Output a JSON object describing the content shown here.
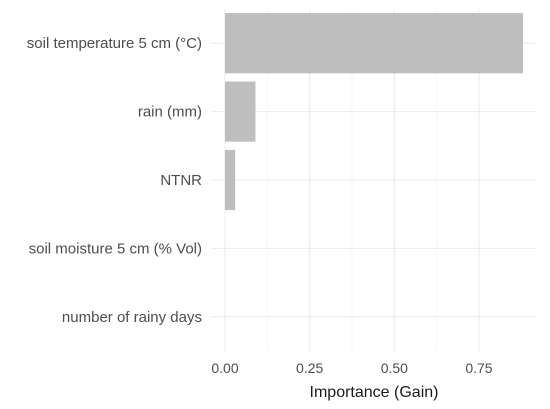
{
  "chart_data": {
    "type": "bar",
    "orientation": "horizontal",
    "categories": [
      "soil temperature 5 cm (°C)",
      "rain (mm)",
      "NTNR",
      "soil moisture 5 cm (% Vol)",
      "number of rainy days"
    ],
    "values": [
      0.88,
      0.09,
      0.03,
      0.0,
      0.0
    ],
    "xlabel": "Importance (Gain)",
    "ylabel": "",
    "title": "",
    "xlim": [
      0,
      0.88
    ],
    "x_ticks": [
      0.0,
      0.25,
      0.5,
      0.75
    ],
    "x_tick_labels": [
      "0.00",
      "0.25",
      "0.50",
      "0.75"
    ],
    "grid": true,
    "bar_color": "#bebebe",
    "background": "#ffffff"
  }
}
